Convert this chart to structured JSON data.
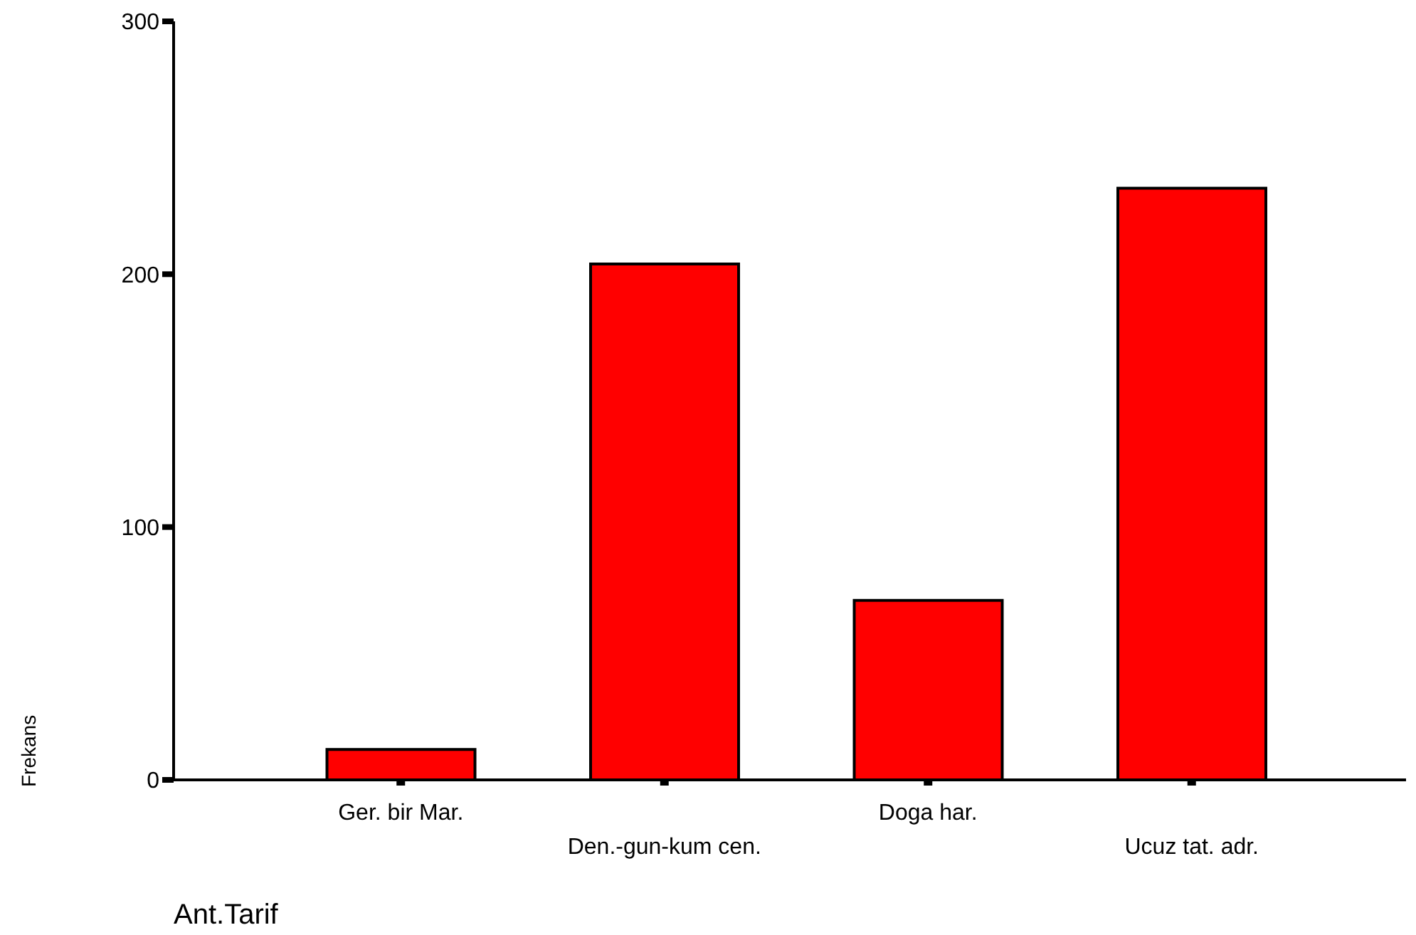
{
  "chart_data": {
    "type": "bar",
    "xlabel": "Ant.Tarif",
    "ylabel": "Frekans",
    "categories": [
      "Ger. bir Mar.",
      "Den.-gun-kum cen.",
      "Doga har.",
      "Ucuz tat. adr."
    ],
    "values": [
      12,
      204,
      71,
      234
    ],
    "color": "#ff0000",
    "ylim": [
      0,
      300
    ],
    "yticks": [
      0,
      100,
      200,
      300
    ],
    "grid": false,
    "legend": false
  }
}
